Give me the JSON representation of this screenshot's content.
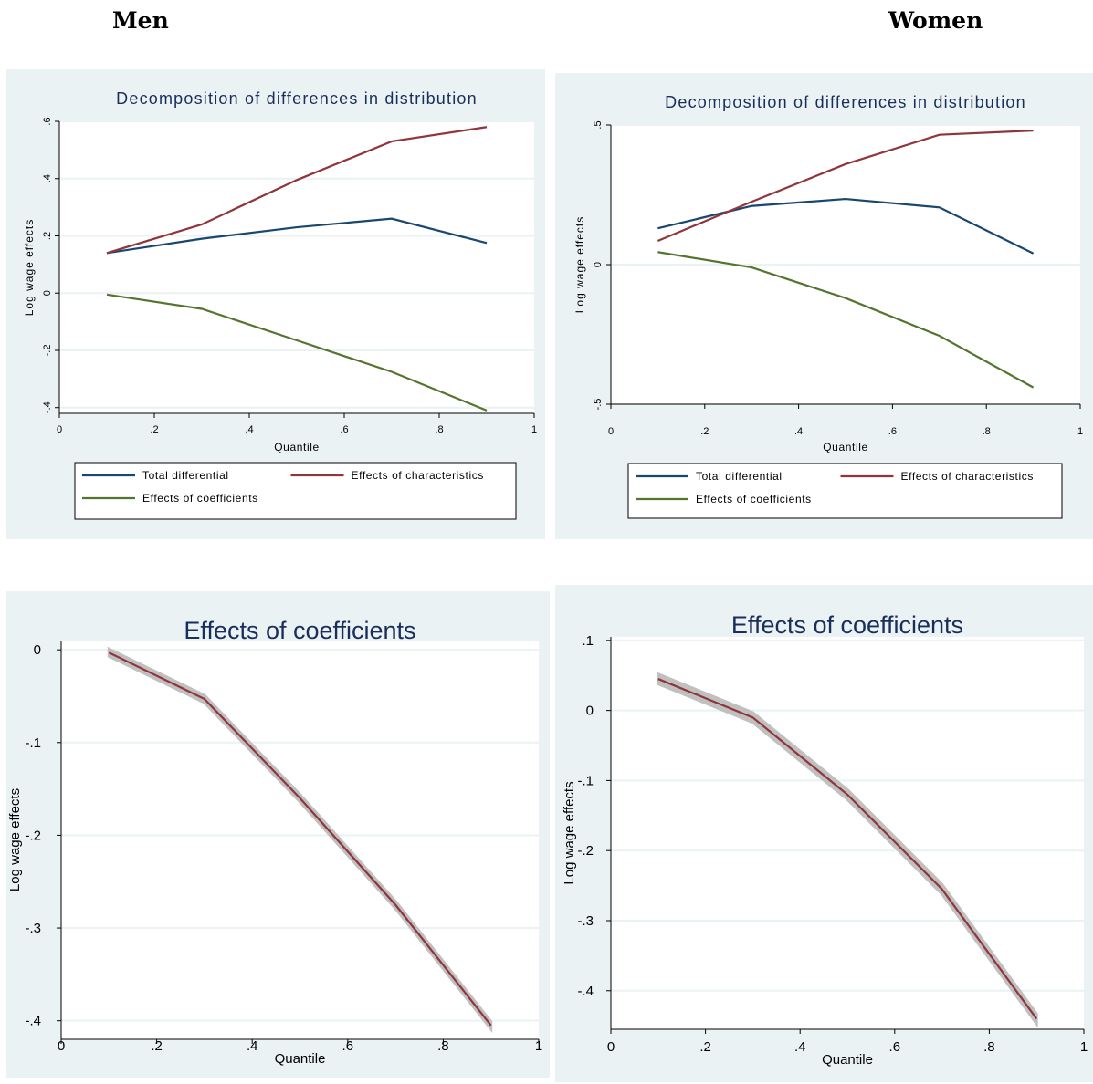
{
  "headings": {
    "left": "Men",
    "right": "Women"
  },
  "colors": {
    "panel_bg": "#eaf2f3",
    "plot_bg": "#ffffff",
    "grid": "#eaf2f3",
    "title": "#1a2e5c",
    "total": "#1a476f",
    "characteristics": "#90353b",
    "coefficients": "#55752f",
    "ci_band": "#c0c0c0"
  },
  "chart_data": [
    {
      "type": "line",
      "panel": "men-decomposition",
      "title": "Decomposition of differences in distribution",
      "xlabel": "Quantile",
      "ylabel": "Log wage effects",
      "xlim": [
        0,
        1
      ],
      "ylim": [
        -0.42,
        0.6
      ],
      "xticks": [
        0,
        0.2,
        0.4,
        0.6,
        0.8,
        1
      ],
      "xtick_labels": [
        "0",
        ".2",
        ".4",
        ".6",
        ".8",
        "1"
      ],
      "yticks": [
        -0.4,
        -0.2,
        0,
        0.2,
        0.4,
        0.6
      ],
      "ytick_labels": [
        "-.4",
        "-.2",
        "0",
        ".2",
        ".4",
        ".6"
      ],
      "ytick_rotated": true,
      "grid": true,
      "legend": "bottom",
      "x": [
        0.1,
        0.3,
        0.5,
        0.7,
        0.9
      ],
      "series": [
        {
          "name": "Total differential",
          "color_key": "total",
          "values": [
            0.14,
            0.19,
            0.23,
            0.26,
            0.175
          ]
        },
        {
          "name": "Effects of characteristics",
          "color_key": "characteristics",
          "values": [
            0.14,
            0.24,
            0.395,
            0.53,
            0.58
          ]
        },
        {
          "name": "Effects of coefficients",
          "color_key": "coefficients",
          "values": [
            -0.005,
            -0.055,
            -0.165,
            -0.275,
            -0.41
          ]
        }
      ]
    },
    {
      "type": "line",
      "panel": "women-decomposition",
      "title": "Decomposition of differences in distribution",
      "xlabel": "Quantile",
      "ylabel": "Log wage effects",
      "xlim": [
        0,
        1
      ],
      "ylim": [
        -0.5,
        0.5
      ],
      "xticks": [
        0,
        0.2,
        0.4,
        0.6,
        0.8,
        1
      ],
      "xtick_labels": [
        "0",
        ".2",
        ".4",
        ".6",
        ".8",
        "1"
      ],
      "yticks": [
        -0.5,
        0,
        0.5
      ],
      "ytick_labels": [
        "-.5",
        "0",
        ".5"
      ],
      "ytick_rotated": true,
      "grid": true,
      "legend": "bottom",
      "x": [
        0.1,
        0.3,
        0.5,
        0.7,
        0.9
      ],
      "series": [
        {
          "name": "Total differential",
          "color_key": "total",
          "values": [
            0.13,
            0.21,
            0.235,
            0.205,
            0.04
          ]
        },
        {
          "name": "Effects of characteristics",
          "color_key": "characteristics",
          "values": [
            0.085,
            0.225,
            0.36,
            0.465,
            0.48
          ]
        },
        {
          "name": "Effects of coefficients",
          "color_key": "coefficients",
          "values": [
            0.045,
            -0.01,
            -0.12,
            -0.255,
            -0.44
          ]
        }
      ]
    },
    {
      "type": "line",
      "panel": "men-coefficients",
      "title": "Effects of coefficients",
      "xlabel": "Quantile",
      "ylabel": "Log wage effects",
      "xlim": [
        0,
        1
      ],
      "ylim": [
        -0.42,
        0.01
      ],
      "xticks": [
        0,
        0.2,
        0.4,
        0.6,
        0.8,
        1
      ],
      "xtick_labels": [
        "0",
        ".2",
        ".4",
        ".6",
        ".8",
        "1"
      ],
      "yticks": [
        -0.4,
        -0.3,
        -0.2,
        -0.1,
        0
      ],
      "ytick_labels": [
        "-.4",
        "-.3",
        "-.2",
        "-.1",
        "0"
      ],
      "ytick_rotated": false,
      "grid": true,
      "legend": "none",
      "x": [
        0.1,
        0.3,
        0.5,
        0.7,
        0.9
      ],
      "series": [
        {
          "name": "",
          "color_key": "characteristics",
          "values": [
            -0.003,
            -0.053,
            -0.16,
            -0.275,
            -0.405
          ],
          "band": 0.004
        }
      ]
    },
    {
      "type": "line",
      "panel": "women-coefficients",
      "title": "Effects of coefficients",
      "xlabel": "Quantile",
      "ylabel": "Log wage effects",
      "xlim": [
        0,
        1
      ],
      "ylim": [
        -0.455,
        0.105
      ],
      "xticks": [
        0,
        0.2,
        0.4,
        0.6,
        0.8,
        1
      ],
      "xtick_labels": [
        "0",
        ".2",
        ".4",
        ".6",
        ".8",
        "1"
      ],
      "yticks": [
        -0.4,
        -0.3,
        -0.2,
        -0.1,
        0,
        0.1
      ],
      "ytick_labels": [
        "-.4",
        "-.3",
        "-.2",
        "-.1",
        "0",
        ".1"
      ],
      "ytick_rotated": false,
      "grid": true,
      "legend": "none",
      "x": [
        0.1,
        0.3,
        0.5,
        0.7,
        0.9
      ],
      "series": [
        {
          "name": "",
          "color_key": "characteristics",
          "values": [
            0.045,
            -0.01,
            -0.12,
            -0.255,
            -0.44
          ],
          "band": 0.007
        }
      ]
    }
  ]
}
